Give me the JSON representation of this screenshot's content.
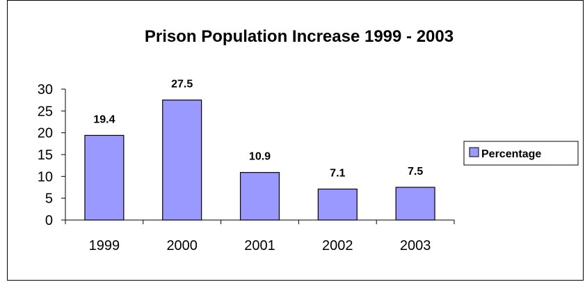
{
  "chart_data": {
    "type": "bar",
    "title": "Prison Population Increase 1999 - 2003",
    "xlabel": "",
    "ylabel": "",
    "categories": [
      "1999",
      "2000",
      "2001",
      "2002",
      "2003"
    ],
    "series": [
      {
        "name": "Percentage",
        "values": [
          19.4,
          27.5,
          10.9,
          7.1,
          7.5
        ]
      }
    ],
    "data_labels": [
      "19.4",
      "27.5",
      "10.9",
      "7.1",
      "7.5"
    ],
    "yticks": [
      "0",
      "5",
      "10",
      "15",
      "20",
      "25",
      "30"
    ],
    "ylim": [
      0,
      30
    ],
    "grid": false,
    "legend": "right",
    "colors": {
      "bar_fill": "#9999ff",
      "bar_stroke": "#000000",
      "axis": "#000000"
    }
  }
}
